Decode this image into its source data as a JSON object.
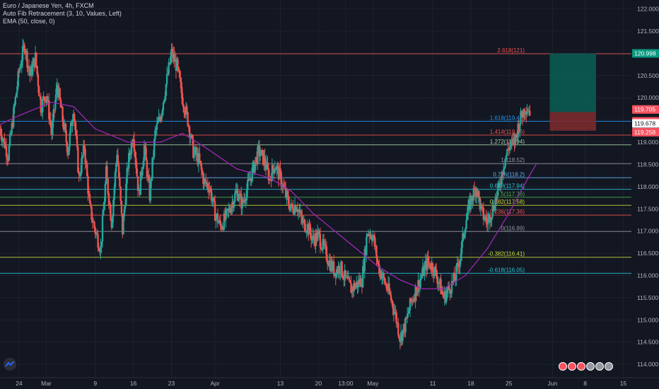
{
  "header": {
    "symbol": "Euro / Japanese Yen, 4h, FXCM",
    "indicator1": "Auto Fib Retracement (3, 10, Values, Left)",
    "indicator2": "EMA (50, close, 0)"
  },
  "colors": {
    "background": "#131722",
    "up": "#26a69a",
    "down": "#ef5350",
    "ema": "#9c27b0",
    "grid": "#1e222d",
    "axis_text": "#b2b5be",
    "target_zone": "#0b5a52",
    "stop_zone": "#7a2a2d"
  },
  "chart_data": {
    "type": "candlestick",
    "title": "Euro / Japanese Yen, 4h, FXCM",
    "yticks": [
      114.0,
      114.5,
      115.0,
      115.5,
      116.0,
      116.5,
      117.0,
      117.5,
      118.0,
      118.5,
      119.0,
      119.5,
      120.0,
      120.5,
      121.0,
      121.5,
      122.0
    ],
    "ytick_labels": [
      "114.000",
      "114.500",
      "115.000",
      "115.500",
      "116.000",
      "116.500",
      "117.000",
      "117.500",
      "118.000",
      "118.500",
      "119.000",
      "119.500",
      "120.000",
      "120.500",
      "121.000",
      "121.500",
      "122.000"
    ],
    "ylim": [
      113.7,
      122.2
    ],
    "xlabels": [
      "24",
      "Mar",
      "9",
      "16",
      "23",
      "Apr",
      "13",
      "20",
      "13:00",
      "May",
      "11",
      "18",
      "25",
      "Jun",
      "8",
      "15"
    ],
    "x_positions_days": [
      0,
      5,
      14,
      21,
      28,
      36,
      48,
      55,
      60,
      65,
      76,
      83,
      90,
      98,
      104,
      111
    ],
    "xlim_days": [
      -3.5,
      112.5
    ],
    "fib_levels": [
      {
        "label": "2.618(121)",
        "value": 120.99,
        "color": "#ef5350"
      },
      {
        "label": "1.618(119.47)",
        "value": 119.47,
        "color": "#2196f3"
      },
      {
        "label": "1.414(119.16)",
        "value": 119.16,
        "color": "#ef5350"
      },
      {
        "label": "1.272(118.94)",
        "value": 118.94,
        "color": "#a5d6a7"
      },
      {
        "label": "1(118.52)",
        "value": 118.52,
        "color": "#9598a1"
      },
      {
        "label": "0.786(118.2)",
        "value": 118.2,
        "color": "#64b5f6"
      },
      {
        "label": "0.618(117.94)",
        "value": 117.94,
        "color": "#26c6da"
      },
      {
        "label": "0.5(117.76)",
        "value": 117.76,
        "color": "#4caf50"
      },
      {
        "label": "0.382(117.58)",
        "value": 117.58,
        "color": "#cddc39"
      },
      {
        "label": "0.236(117.36)",
        "value": 117.36,
        "color": "#ef5350"
      },
      {
        "label": "0(116.99)",
        "value": 116.99,
        "color": "#9598a1"
      },
      {
        "label": "-0.382(116.41)",
        "value": 116.41,
        "color": "#cddc39"
      },
      {
        "label": "-0.618(116.05)",
        "value": 116.05,
        "color": "#26c6da"
      }
    ],
    "price_labels": [
      {
        "text": "120.998",
        "value": 120.998,
        "color": "#089981"
      },
      {
        "text": "119.705",
        "value": 119.705,
        "color": "#f7525f"
      },
      {
        "text": "03:58:21",
        "value": 119.58,
        "color": "#f7525f"
      },
      {
        "text": "119.678",
        "value": 119.678,
        "color": "#ffffff",
        "text_color": "#131722"
      },
      {
        "text": "119.258",
        "value": 119.258,
        "color": "#f7525f"
      }
    ],
    "position": {
      "x_start_day": 97.5,
      "x_end_day": 106,
      "entry": 119.678,
      "target": 120.998,
      "stop": 119.258
    },
    "price_path": [
      [
        -3.5,
        119.3
      ],
      [
        -2,
        118.7
      ],
      [
        0,
        120.6
      ],
      [
        1,
        121.2
      ],
      [
        2,
        120.5
      ],
      [
        3,
        120.9
      ],
      [
        4,
        119.8
      ],
      [
        5,
        120.1
      ],
      [
        6,
        119.2
      ],
      [
        7,
        120.3
      ],
      [
        8,
        119.5
      ],
      [
        9,
        118.8
      ],
      [
        10,
        119.8
      ],
      [
        11,
        118.2
      ],
      [
        12,
        118.9
      ],
      [
        13,
        117.5
      ],
      [
        14,
        117.0
      ],
      [
        15,
        116.6
      ],
      [
        16,
        118.3
      ],
      [
        17,
        117.2
      ],
      [
        18,
        118.8
      ],
      [
        19,
        117.0
      ],
      [
        20,
        118.5
      ],
      [
        21,
        119.2
      ],
      [
        22,
        117.8
      ],
      [
        23,
        118.9
      ],
      [
        24,
        117.8
      ],
      [
        25,
        119.2
      ],
      [
        26,
        119.6
      ],
      [
        27,
        120.3
      ],
      [
        28,
        121.0
      ],
      [
        29,
        120.7
      ],
      [
        30,
        120.0
      ],
      [
        31,
        119.5
      ],
      [
        32,
        118.8
      ],
      [
        33,
        118.6
      ],
      [
        34,
        118.1
      ],
      [
        35,
        118.0
      ],
      [
        36,
        117.4
      ],
      [
        37,
        117.1
      ],
      [
        38,
        117.3
      ],
      [
        39,
        117.6
      ],
      [
        40,
        117.9
      ],
      [
        41,
        117.6
      ],
      [
        42,
        118.0
      ],
      [
        43,
        118.4
      ],
      [
        44,
        118.8
      ],
      [
        45,
        118.6
      ],
      [
        46,
        118.2
      ],
      [
        47,
        118.5
      ],
      [
        48,
        118.2
      ],
      [
        49,
        117.8
      ],
      [
        50,
        117.5
      ],
      [
        51,
        117.6
      ],
      [
        52,
        117.2
      ],
      [
        53,
        117.1
      ],
      [
        54,
        116.8
      ],
      [
        55,
        116.9
      ],
      [
        56,
        116.6
      ],
      [
        57,
        116.3
      ],
      [
        58,
        116.1
      ],
      [
        59,
        116.2
      ],
      [
        60,
        115.9
      ],
      [
        61,
        115.7
      ],
      [
        62,
        115.8
      ],
      [
        63,
        115.9
      ],
      [
        64,
        117.0
      ],
      [
        65,
        116.9
      ],
      [
        66,
        116.2
      ],
      [
        67,
        115.9
      ],
      [
        68,
        115.6
      ],
      [
        69,
        115.2
      ],
      [
        70,
        114.6
      ],
      [
        71,
        114.9
      ],
      [
        72,
        115.4
      ],
      [
        73,
        115.7
      ],
      [
        74,
        116.0
      ],
      [
        75,
        116.3
      ],
      [
        76,
        116.2
      ],
      [
        77,
        115.9
      ],
      [
        78,
        115.5
      ],
      [
        79,
        115.7
      ],
      [
        80,
        115.9
      ],
      [
        81,
        116.4
      ],
      [
        82,
        117.2
      ],
      [
        83,
        117.7
      ],
      [
        84,
        118.0
      ],
      [
        85,
        117.4
      ],
      [
        86,
        117.2
      ],
      [
        87,
        117.5
      ],
      [
        88,
        117.9
      ],
      [
        89,
        118.5
      ],
      [
        90,
        118.9
      ],
      [
        91,
        119.0
      ],
      [
        92,
        119.5
      ],
      [
        93,
        119.8
      ],
      [
        94,
        119.7
      ]
    ],
    "ema_path": [
      [
        -3.5,
        119.4
      ],
      [
        0,
        119.6
      ],
      [
        6,
        119.9
      ],
      [
        10,
        119.8
      ],
      [
        14,
        119.3
      ],
      [
        20,
        119.0
      ],
      [
        26,
        119.0
      ],
      [
        30,
        119.2
      ],
      [
        34,
        118.9
      ],
      [
        40,
        118.4
      ],
      [
        46,
        118.2
      ],
      [
        50,
        117.9
      ],
      [
        54,
        117.4
      ],
      [
        58,
        117.0
      ],
      [
        62,
        116.6
      ],
      [
        66,
        116.2
      ],
      [
        70,
        115.9
      ],
      [
        74,
        115.7
      ],
      [
        78,
        115.7
      ],
      [
        82,
        116.0
      ],
      [
        86,
        116.6
      ],
      [
        90,
        117.4
      ],
      [
        94,
        118.3
      ],
      [
        95,
        118.5
      ]
    ]
  }
}
